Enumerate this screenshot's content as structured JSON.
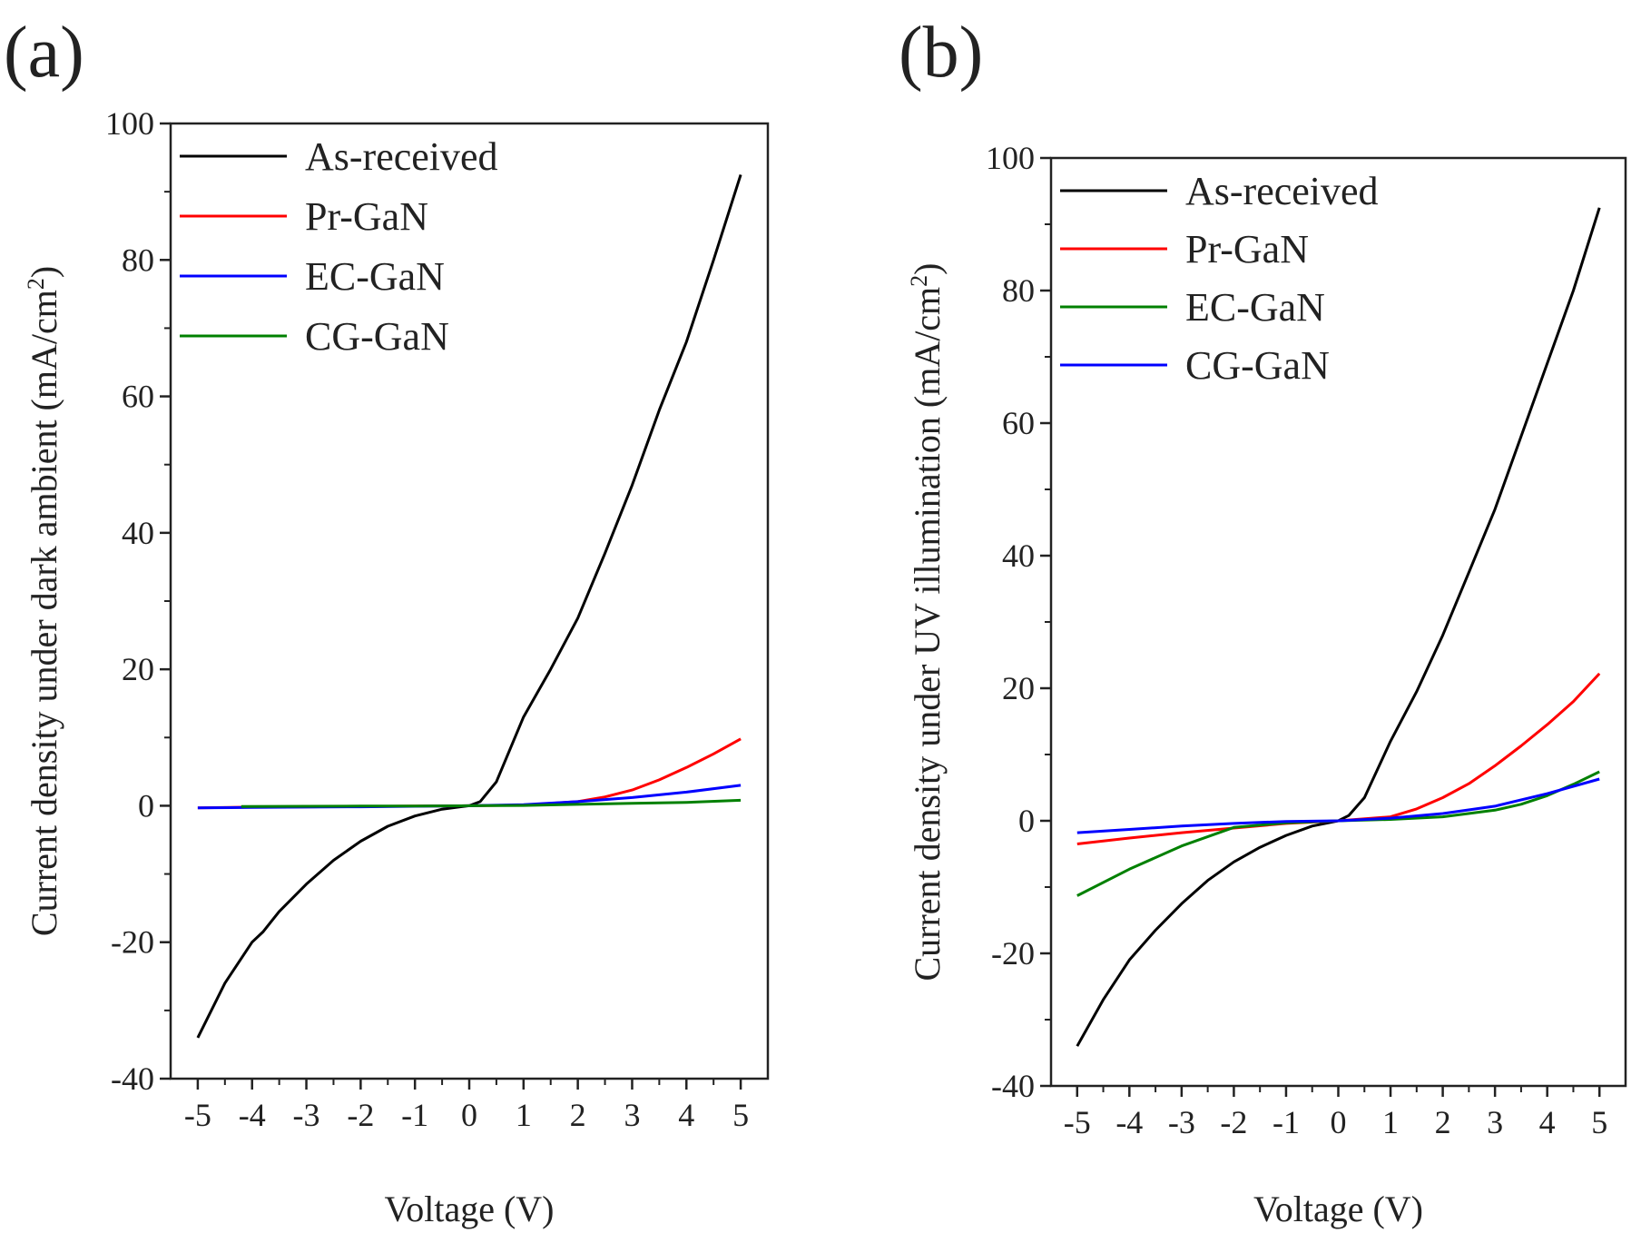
{
  "chart_data": [
    {
      "type": "line",
      "panel_label": "(a)",
      "xlabel": "Voltage (V)",
      "ylabel_main": "Current density under dark ambient (mA/cm",
      "ylabel_sup": "2",
      "ylabel_close": ")",
      "xlim": [
        -5.5,
        5.5
      ],
      "ylim": [
        -40,
        100
      ],
      "xticks": [
        -5,
        -4,
        -3,
        -2,
        -1,
        0,
        1,
        2,
        3,
        4,
        5
      ],
      "yticks": [
        -40,
        -20,
        0,
        20,
        40,
        60,
        80,
        100
      ],
      "legend_position": "top-left",
      "grid": false,
      "series": [
        {
          "name": "As-received",
          "color": "#000000",
          "x": [
            -5,
            -4.5,
            -4,
            -3.8,
            -3.5,
            -3,
            -2.5,
            -2,
            -1.5,
            -1,
            -0.5,
            0,
            0.2,
            0.5,
            1,
            1.5,
            2,
            2.5,
            3,
            3.5,
            4,
            4.5,
            5
          ],
          "y": [
            -34,
            -26,
            -20,
            -18.5,
            -15.5,
            -11.5,
            -8,
            -5.2,
            -3,
            -1.5,
            -0.5,
            0,
            0.6,
            3.5,
            13,
            20,
            27.5,
            37,
            47,
            58,
            68,
            80,
            92.5
          ]
        },
        {
          "name": "Pr-GaN",
          "color": "#ff0000",
          "x": [
            -5,
            -4,
            -3,
            -2,
            -1,
            0,
            1,
            2,
            2.5,
            3,
            3.5,
            4,
            4.5,
            5
          ],
          "y": [
            -0.3,
            -0.2,
            -0.15,
            -0.1,
            -0.05,
            0,
            0.1,
            0.6,
            1.3,
            2.3,
            3.8,
            5.6,
            7.6,
            9.8
          ]
        },
        {
          "name": "EC-GaN",
          "color": "#0000ff",
          "x": [
            -5,
            -4,
            -3,
            -2,
            -1,
            0,
            1,
            2,
            3,
            4,
            5
          ],
          "y": [
            -0.3,
            -0.25,
            -0.2,
            -0.15,
            -0.08,
            0,
            0.15,
            0.6,
            1.2,
            2,
            3
          ]
        },
        {
          "name": "CG-GaN",
          "color": "#008000",
          "x": [
            -4.2,
            -3,
            -2,
            -1,
            0,
            1,
            2,
            3,
            4,
            5
          ],
          "y": [
            -0.1,
            -0.08,
            -0.05,
            -0.03,
            0,
            0.05,
            0.2,
            0.35,
            0.5,
            0.8
          ]
        }
      ]
    },
    {
      "type": "line",
      "panel_label": "(b)",
      "xlabel": "Voltage (V)",
      "ylabel_main": "Current density under UV illumination (mA/cm",
      "ylabel_sup": "2",
      "ylabel_close": ")",
      "xlim": [
        -5.5,
        5.5
      ],
      "ylim": [
        -40,
        100
      ],
      "xticks": [
        -5,
        -4,
        -3,
        -2,
        -1,
        0,
        1,
        2,
        3,
        4,
        5
      ],
      "yticks": [
        -40,
        -20,
        0,
        20,
        40,
        60,
        80,
        100
      ],
      "legend_position": "top-left",
      "grid": false,
      "series": [
        {
          "name": "As-received",
          "color": "#000000",
          "x": [
            -5,
            -4.5,
            -4,
            -3.5,
            -3,
            -2.5,
            -2,
            -1.5,
            -1,
            -0.5,
            0,
            0.2,
            0.5,
            1,
            1.5,
            2,
            2.5,
            3,
            3.5,
            4,
            4.5,
            5
          ],
          "y": [
            -34,
            -27,
            -21,
            -16.5,
            -12.5,
            -9,
            -6.2,
            -4,
            -2.2,
            -0.8,
            0,
            0.8,
            3.5,
            12,
            19.5,
            28,
            37.5,
            47,
            58,
            69,
            80,
            92.5
          ]
        },
        {
          "name": "Pr-GaN",
          "color": "#ff0000",
          "x": [
            -5,
            -4,
            -3,
            -2,
            -1,
            0,
            1,
            1.5,
            2,
            2.5,
            3,
            3.5,
            4,
            4.5,
            5
          ],
          "y": [
            -3.5,
            -2.6,
            -1.8,
            -1.1,
            -0.4,
            0,
            0.6,
            1.8,
            3.5,
            5.6,
            8.3,
            11.3,
            14.5,
            18,
            22.2
          ]
        },
        {
          "name": "EC-GaN",
          "color": "#008000",
          "x": [
            -5,
            -4,
            -3,
            -2,
            -1,
            0,
            1,
            2,
            3,
            3.5,
            4,
            4.5,
            5
          ],
          "y": [
            -11.3,
            -7.3,
            -3.8,
            -1,
            -0.3,
            0,
            0.2,
            0.6,
            1.6,
            2.5,
            3.8,
            5.5,
            7.4
          ]
        },
        {
          "name": "CG-GaN",
          "color": "#0000ff",
          "x": [
            -5,
            -4,
            -3,
            -2,
            -1,
            0,
            1,
            2,
            3,
            4,
            5
          ],
          "y": [
            -1.8,
            -1.3,
            -0.8,
            -0.4,
            -0.1,
            0,
            0.4,
            1.1,
            2.2,
            4.1,
            6.3
          ]
        }
      ]
    }
  ]
}
